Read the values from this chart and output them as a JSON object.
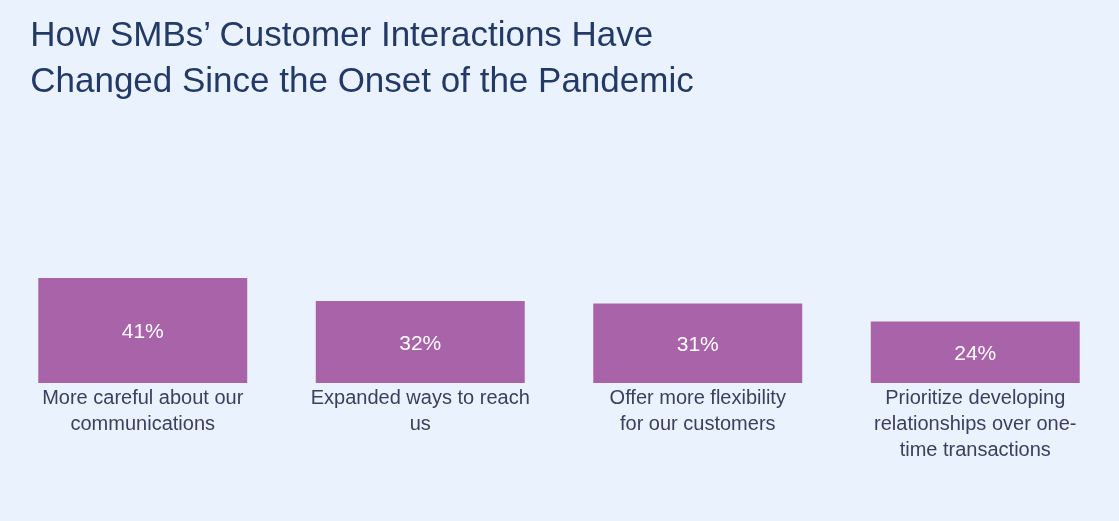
{
  "chart_data": {
    "type": "bar",
    "title": "How SMBs’ Customer Interactions Have Changed Since the Onset of the Pandemic",
    "categories": [
      "More careful about our communications",
      "Expanded ways to reach us",
      "Offer more flexibility for our customers",
      "Prioritize developing relationships over one-time transactions"
    ],
    "values": [
      41,
      32,
      31,
      24
    ],
    "value_labels": [
      "41%",
      "32%",
      "31%",
      "24%"
    ],
    "color": "#a863a9",
    "grid": false,
    "legend": false
  }
}
